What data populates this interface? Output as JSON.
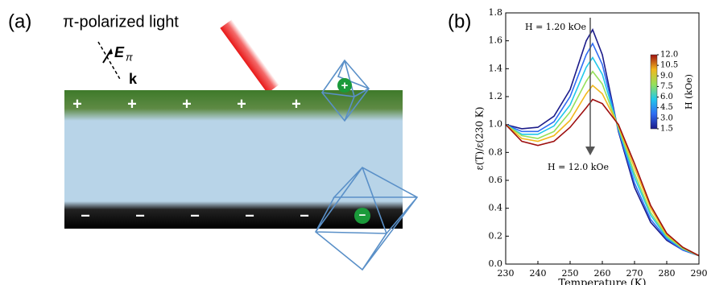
{
  "panel_a": {
    "label": "(a)",
    "light_label": "π-polarized light",
    "field_label": "E",
    "field_sub": "π",
    "wavevector": "k",
    "top_charges": [
      "+",
      "+",
      "+",
      "+",
      "+"
    ],
    "bottom_charges": [
      "−",
      "−",
      "−",
      "−",
      "−"
    ],
    "ions": [
      "+",
      "−"
    ]
  },
  "chart_data": {
    "type": "line",
    "label": "(b)",
    "xlabel": "Temperature (K)",
    "ylabel": "ε(T)/ε(230 K)",
    "annotations": [
      "H = 1.20 kOe",
      "H = 12.0 kOe"
    ],
    "x": [
      230,
      235,
      240,
      245,
      250,
      255,
      257,
      260,
      265,
      270,
      275,
      280,
      285,
      290
    ],
    "series": [
      {
        "color": "#1c1c8a",
        "values": [
          1.0,
          0.97,
          0.98,
          1.06,
          1.25,
          1.6,
          1.68,
          1.5,
          0.95,
          0.55,
          0.3,
          0.17,
          0.1,
          0.06
        ]
      },
      {
        "color": "#2f6cf2",
        "values": [
          1.0,
          0.95,
          0.95,
          1.02,
          1.2,
          1.5,
          1.58,
          1.43,
          0.96,
          0.58,
          0.32,
          0.18,
          0.1,
          0.06
        ]
      },
      {
        "color": "#20c8ea",
        "values": [
          1.0,
          0.93,
          0.93,
          0.99,
          1.14,
          1.41,
          1.48,
          1.36,
          0.97,
          0.62,
          0.35,
          0.19,
          0.11,
          0.06
        ]
      },
      {
        "color": "#96e05a",
        "values": [
          1.0,
          0.92,
          0.9,
          0.95,
          1.09,
          1.31,
          1.38,
          1.29,
          0.98,
          0.65,
          0.37,
          0.2,
          0.11,
          0.06
        ]
      },
      {
        "color": "#f2b81c",
        "values": [
          1.0,
          0.9,
          0.88,
          0.92,
          1.03,
          1.22,
          1.28,
          1.22,
          0.99,
          0.69,
          0.4,
          0.21,
          0.12,
          0.06
        ]
      },
      {
        "color": "#9e1010",
        "values": [
          1.0,
          0.88,
          0.85,
          0.88,
          0.98,
          1.12,
          1.18,
          1.15,
          1.0,
          0.72,
          0.42,
          0.22,
          0.12,
          0.06
        ]
      }
    ],
    "xlim": [
      230,
      290
    ],
    "xticks": [
      230,
      240,
      250,
      260,
      270,
      280,
      290
    ],
    "ylim": [
      0,
      1.8
    ],
    "yticks": [
      {
        "value": 0,
        "label": "0.0"
      },
      {
        "value": 0.2,
        "label": "0.2"
      },
      {
        "value": 0.4,
        "label": "0.4"
      },
      {
        "value": 0.6,
        "label": "0.6"
      },
      {
        "value": 0.8,
        "label": "0.8"
      },
      {
        "value": 1,
        "label": "1.0"
      },
      {
        "value": 1.2,
        "label": "1.2"
      },
      {
        "value": 1.4,
        "label": "1.4"
      },
      {
        "value": 1.6,
        "label": "1.6"
      },
      {
        "value": 1.8,
        "label": "1.8"
      }
    ],
    "colorbar": {
      "label": "H (kOe)",
      "clim": [
        1.5,
        12
      ],
      "ticks": [
        {
          "value": 1.5,
          "label": "1.5"
        },
        {
          "value": 3,
          "label": "3.0"
        },
        {
          "value": 4.5,
          "label": "4.5"
        },
        {
          "value": 6,
          "label": "6.0"
        },
        {
          "value": 7.5,
          "label": "7.5"
        },
        {
          "value": 9,
          "label": "9.0"
        },
        {
          "value": 10.5,
          "label": "10.5"
        },
        {
          "value": 12,
          "label": "12.0"
        }
      ]
    }
  }
}
